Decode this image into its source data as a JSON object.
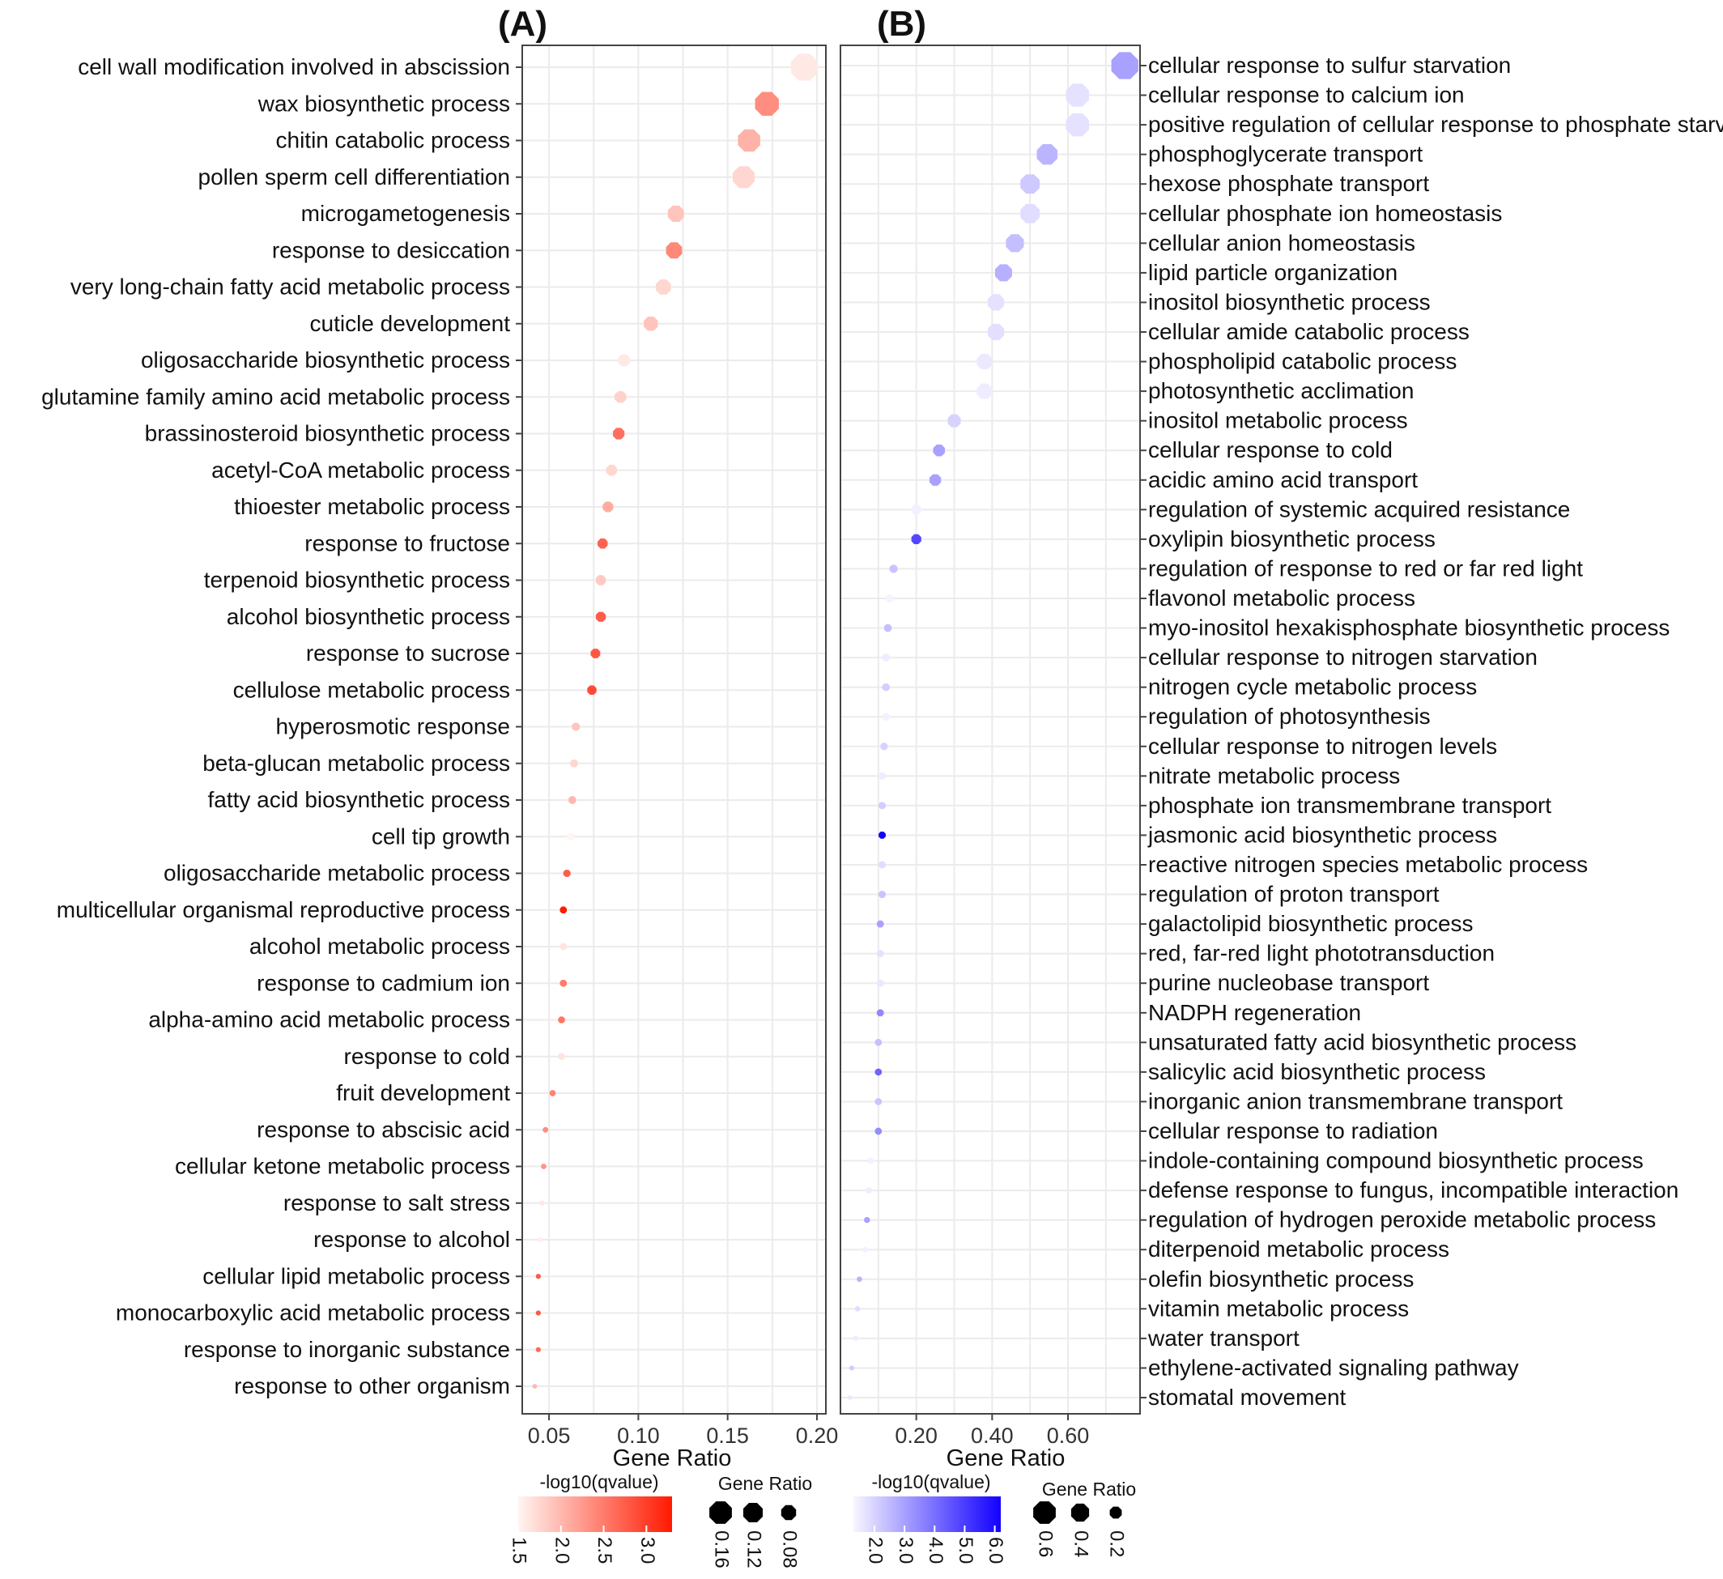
{
  "chart_data": [
    {
      "type": "scatter",
      "panel_label": "(A)",
      "xlabel": "Gene Ratio",
      "xlim": [
        0.035,
        0.205
      ],
      "xticks": [
        0.05,
        0.1,
        0.15,
        0.2
      ],
      "xtick_labels": [
        "0.05",
        "0.10",
        "0.15",
        "0.20"
      ],
      "grid": true,
      "color_scale": {
        "title": "-log10(qvalue)",
        "min": 1.5,
        "max": 3.3,
        "low_color": "#fff5f2",
        "high_color": "#ff1a00",
        "ticks": [
          1.5,
          2.0,
          2.5,
          3.0
        ],
        "tick_labels": [
          "1.5",
          "2.0",
          "2.5",
          "3.0"
        ]
      },
      "size_legend": {
        "title": "Gene Ratio",
        "values": [
          0.16,
          0.12,
          0.08
        ],
        "labels": [
          "0.16",
          "0.12",
          "0.08"
        ]
      },
      "points": [
        {
          "label": "cell wall modification involved in abscission",
          "x": 0.193,
          "q": 1.6
        },
        {
          "label": "wax biosynthetic process",
          "x": 0.172,
          "q": 2.35
        },
        {
          "label": "chitin catabolic process",
          "x": 0.162,
          "q": 2.05
        },
        {
          "label": "pollen sperm cell differentiation",
          "x": 0.159,
          "q": 1.75
        },
        {
          "label": "microgametogenesis",
          "x": 0.121,
          "q": 1.9
        },
        {
          "label": "response to desiccation",
          "x": 0.12,
          "q": 2.4
        },
        {
          "label": "very long-chain fatty acid metabolic process",
          "x": 0.114,
          "q": 1.75
        },
        {
          "label": "cuticle development",
          "x": 0.107,
          "q": 1.9
        },
        {
          "label": "oligosaccharide biosynthetic process",
          "x": 0.092,
          "q": 1.6
        },
        {
          "label": "glutamine family amino acid metabolic process",
          "x": 0.09,
          "q": 1.8
        },
        {
          "label": "brassinosteroid biosynthetic process",
          "x": 0.089,
          "q": 2.6
        },
        {
          "label": "acetyl-CoA metabolic process",
          "x": 0.085,
          "q": 1.75
        },
        {
          "label": "thioester metabolic process",
          "x": 0.083,
          "q": 2.1
        },
        {
          "label": "response to fructose",
          "x": 0.08,
          "q": 2.7
        },
        {
          "label": "terpenoid biosynthetic process",
          "x": 0.079,
          "q": 1.85
        },
        {
          "label": "alcohol biosynthetic process",
          "x": 0.079,
          "q": 2.75
        },
        {
          "label": "response to sucrose",
          "x": 0.076,
          "q": 2.8
        },
        {
          "label": "cellulose metabolic process",
          "x": 0.074,
          "q": 2.9
        },
        {
          "label": "hyperosmotic response",
          "x": 0.065,
          "q": 1.9
        },
        {
          "label": "beta-glucan metabolic process",
          "x": 0.064,
          "q": 1.75
        },
        {
          "label": "fatty acid biosynthetic process",
          "x": 0.063,
          "q": 2.0
        },
        {
          "label": "cell tip growth",
          "x": 0.062,
          "q": 1.5
        },
        {
          "label": "oligosaccharide metabolic process",
          "x": 0.06,
          "q": 2.75
        },
        {
          "label": "multicellular organismal reproductive process",
          "x": 0.058,
          "q": 3.3
        },
        {
          "label": "alcohol metabolic process",
          "x": 0.058,
          "q": 1.65
        },
        {
          "label": "response to cadmium ion",
          "x": 0.058,
          "q": 2.5
        },
        {
          "label": "alpha-amino acid metabolic process",
          "x": 0.057,
          "q": 2.55
        },
        {
          "label": "response to cold",
          "x": 0.057,
          "q": 1.65
        },
        {
          "label": "fruit development",
          "x": 0.052,
          "q": 2.45
        },
        {
          "label": "response to abscisic acid",
          "x": 0.048,
          "q": 2.35
        },
        {
          "label": "cellular ketone metabolic process",
          "x": 0.047,
          "q": 2.3
        },
        {
          "label": "response to salt stress",
          "x": 0.046,
          "q": 1.6
        },
        {
          "label": "response to alcohol",
          "x": 0.045,
          "q": 1.55
        },
        {
          "label": "cellular lipid metabolic process",
          "x": 0.044,
          "q": 2.8
        },
        {
          "label": "monocarboxylic acid metabolic process",
          "x": 0.044,
          "q": 2.8
        },
        {
          "label": "response to inorganic substance",
          "x": 0.044,
          "q": 2.65
        },
        {
          "label": "response to other organism",
          "x": 0.042,
          "q": 2.0
        }
      ]
    },
    {
      "type": "scatter",
      "panel_label": "(B)",
      "xlabel": "Gene Ratio",
      "xlim": [
        0.0,
        0.79
      ],
      "xticks": [
        0.2,
        0.4,
        0.6
      ],
      "xtick_labels": [
        "0.20",
        "0.40",
        "0.60"
      ],
      "grid": true,
      "color_scale": {
        "title": "-log10(qvalue)",
        "min": 1.3,
        "max": 6.2,
        "low_color": "#f8f6ff",
        "high_color": "#1200ff",
        "ticks": [
          2.0,
          3.0,
          4.0,
          5.0,
          6.0
        ],
        "tick_labels": [
          "2.0",
          "3.0",
          "4.0",
          "5.0",
          "6.0"
        ]
      },
      "size_legend": {
        "title": "Gene Ratio",
        "values": [
          0.6,
          0.4,
          0.2
        ],
        "labels": [
          "0.6",
          "0.4",
          "0.2"
        ]
      },
      "points": [
        {
          "label": "cellular response to sulfur starvation",
          "x": 0.75,
          "q": 3.0
        },
        {
          "label": "cellular response to calcium ion",
          "x": 0.625,
          "q": 1.7
        },
        {
          "label": "positive regulation of cellular response to phosphate starvation",
          "x": 0.625,
          "q": 1.7
        },
        {
          "label": "phosphoglycerate transport",
          "x": 0.545,
          "q": 2.6
        },
        {
          "label": "hexose phosphate transport",
          "x": 0.5,
          "q": 2.2
        },
        {
          "label": "cellular phosphate ion homeostasis",
          "x": 0.5,
          "q": 1.8
        },
        {
          "label": "cellular anion homeostasis",
          "x": 0.46,
          "q": 2.4
        },
        {
          "label": "lipid particle organization",
          "x": 0.43,
          "q": 2.7
        },
        {
          "label": "inositol biosynthetic process",
          "x": 0.41,
          "q": 1.7
        },
        {
          "label": "cellular amide catabolic process",
          "x": 0.41,
          "q": 1.75
        },
        {
          "label": "phospholipid catabolic process",
          "x": 0.38,
          "q": 1.55
        },
        {
          "label": "photosynthetic acclimation",
          "x": 0.38,
          "q": 1.5
        },
        {
          "label": "inositol metabolic process",
          "x": 0.3,
          "q": 2.0
        },
        {
          "label": "cellular response to cold",
          "x": 0.26,
          "q": 3.0
        },
        {
          "label": "acidic amino acid transport",
          "x": 0.25,
          "q": 3.0
        },
        {
          "label": "regulation of systemic acquired resistance",
          "x": 0.2,
          "q": 1.4
        },
        {
          "label": "oxylipin biosynthetic process",
          "x": 0.2,
          "q": 4.8
        },
        {
          "label": "regulation of response to red or far red light",
          "x": 0.14,
          "q": 2.3
        },
        {
          "label": "flavonol metabolic process",
          "x": 0.13,
          "q": 1.35
        },
        {
          "label": "myo-inositol hexakisphosphate biosynthetic process",
          "x": 0.125,
          "q": 2.4
        },
        {
          "label": "cellular response to nitrogen starvation",
          "x": 0.12,
          "q": 1.5
        },
        {
          "label": "nitrogen cycle metabolic process",
          "x": 0.12,
          "q": 2.1
        },
        {
          "label": "regulation of photosynthesis",
          "x": 0.12,
          "q": 1.4
        },
        {
          "label": "cellular response to nitrogen levels",
          "x": 0.115,
          "q": 2.0
        },
        {
          "label": "nitrate metabolic process",
          "x": 0.11,
          "q": 1.5
        },
        {
          "label": "phosphate ion transmembrane transport",
          "x": 0.11,
          "q": 2.1
        },
        {
          "label": "jasmonic acid biosynthetic process",
          "x": 0.11,
          "q": 6.2
        },
        {
          "label": "reactive nitrogen species metabolic process",
          "x": 0.11,
          "q": 1.8
        },
        {
          "label": "regulation of proton transport",
          "x": 0.11,
          "q": 2.3
        },
        {
          "label": "galactolipid biosynthetic process",
          "x": 0.105,
          "q": 3.0
        },
        {
          "label": "red, far-red light phototransduction",
          "x": 0.105,
          "q": 1.7
        },
        {
          "label": "purine nucleobase transport",
          "x": 0.105,
          "q": 1.6
        },
        {
          "label": "NADPH regeneration",
          "x": 0.105,
          "q": 3.5
        },
        {
          "label": "unsaturated fatty acid biosynthetic process",
          "x": 0.1,
          "q": 2.4
        },
        {
          "label": "salicylic acid biosynthetic process",
          "x": 0.1,
          "q": 4.2
        },
        {
          "label": "inorganic anion transmembrane transport",
          "x": 0.1,
          "q": 2.3
        },
        {
          "label": "cellular response to radiation",
          "x": 0.1,
          "q": 3.4
        },
        {
          "label": "indole-containing compound biosynthetic process",
          "x": 0.08,
          "q": 1.4
        },
        {
          "label": "defense response to fungus, incompatible interaction",
          "x": 0.075,
          "q": 1.5
        },
        {
          "label": "regulation of hydrogen peroxide metabolic process",
          "x": 0.07,
          "q": 3.0
        },
        {
          "label": "diterpenoid metabolic process",
          "x": 0.065,
          "q": 1.4
        },
        {
          "label": "olefin biosynthetic process",
          "x": 0.05,
          "q": 2.6
        },
        {
          "label": "vitamin metabolic process",
          "x": 0.045,
          "q": 1.8
        },
        {
          "label": "water transport",
          "x": 0.04,
          "q": 1.5
        },
        {
          "label": "ethylene-activated signaling pathway",
          "x": 0.03,
          "q": 2.2
        },
        {
          "label": "stomatal movement",
          "x": 0.025,
          "q": 1.6
        }
      ]
    }
  ]
}
